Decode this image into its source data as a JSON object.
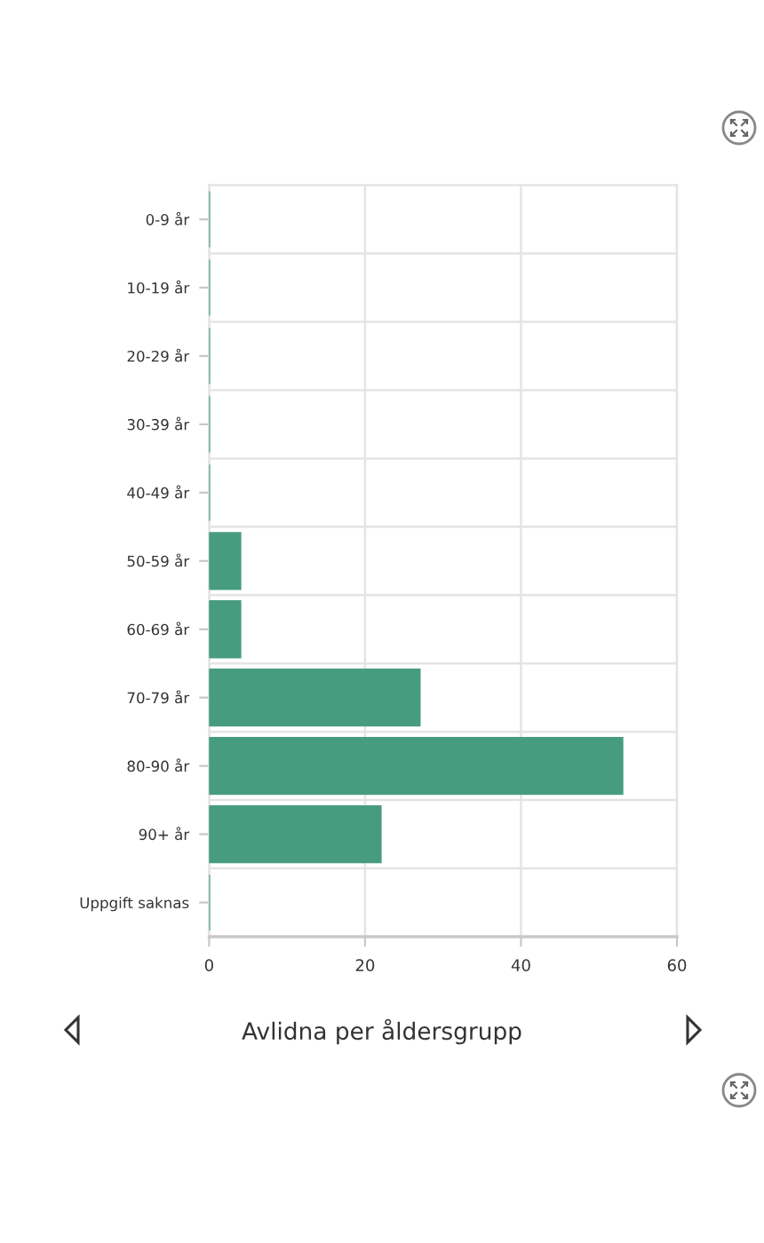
{
  "chart_data": {
    "type": "bar",
    "orientation": "horizontal",
    "title": "Avlidna per åldersgrupp",
    "categories": [
      "0-9 år",
      "10-19 år",
      "20-29 år",
      "30-39 år",
      "40-49 år",
      "50-59 år",
      "60-69 år",
      "70-79 år",
      "80-90 år",
      "90+ år",
      "Uppgift saknas"
    ],
    "values": [
      0,
      0,
      0,
      0,
      0,
      4,
      4,
      27,
      53,
      22,
      0
    ],
    "color": "#479c80",
    "xlim": [
      0,
      60
    ],
    "xticks": [
      0,
      20,
      40,
      60
    ],
    "grid": true
  }
}
